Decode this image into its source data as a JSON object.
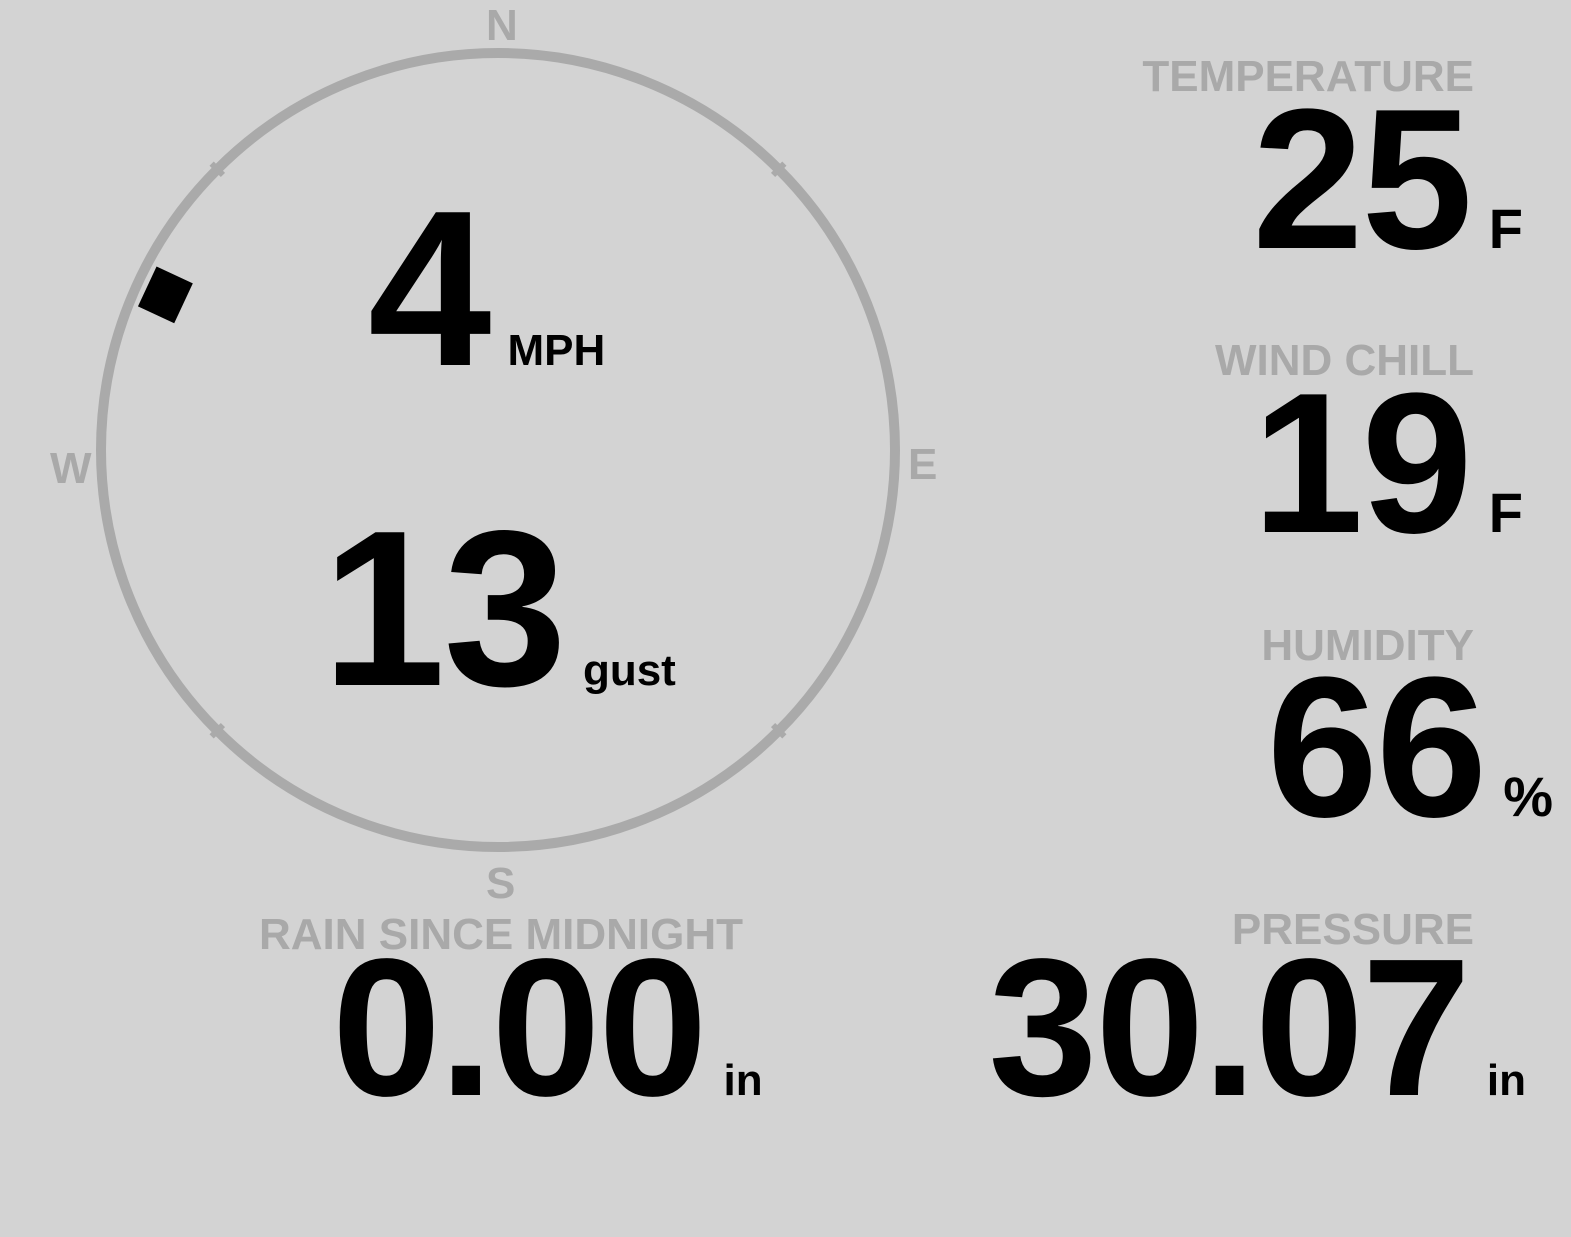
{
  "colors": {
    "background": "#d3d3d3",
    "label": "#a9a9a9",
    "value": "#000000",
    "compass_ring": "#aaaaaa",
    "wind_marker": "#000000"
  },
  "compass": {
    "n": "N",
    "s": "S",
    "e": "E",
    "w": "W",
    "wind_direction_deg": 295
  },
  "wind": {
    "speed": "4",
    "speed_unit": "MPH",
    "gust": "13",
    "gust_unit": "gust"
  },
  "temperature": {
    "label": "TEMPERATURE",
    "value": "25",
    "unit": "F"
  },
  "wind_chill": {
    "label": "WIND CHILL",
    "value": "19",
    "unit": "F"
  },
  "humidity": {
    "label": "HUMIDITY",
    "value": "66",
    "unit": "%"
  },
  "rain": {
    "label": "RAIN SINCE MIDNIGHT",
    "value": "0.00",
    "unit": "in"
  },
  "pressure": {
    "label": "PRESSURE",
    "value": "30.07",
    "unit": "in"
  }
}
